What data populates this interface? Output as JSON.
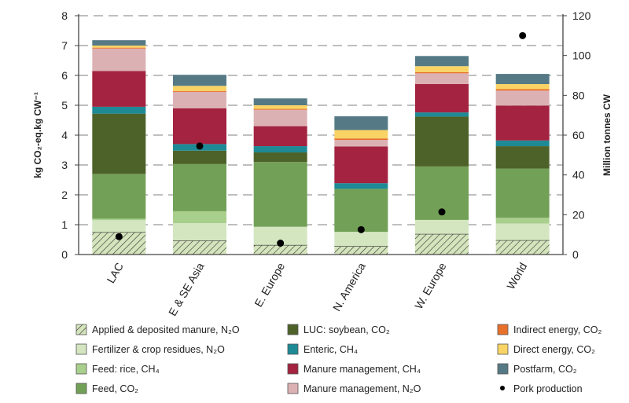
{
  "chart_data": {
    "type": "bar",
    "stacked": true,
    "categories": [
      "LAC",
      "E & SE Asia",
      "E. Europe",
      "N. America",
      "W. Europe",
      "World"
    ],
    "ylabel": "kg CO₂-eq.kg CW⁻¹",
    "ylim": [
      0,
      8
    ],
    "yticks": [
      0,
      1,
      2,
      3,
      4,
      5,
      6,
      7,
      8
    ],
    "y2label": "Million tonnes CW",
    "y2lim": [
      0,
      120
    ],
    "y2ticks": [
      0,
      20,
      40,
      60,
      80,
      100,
      120
    ],
    "grid": "horizontal dashed",
    "legend_position": "bottom",
    "series": [
      {
        "name": "Applied & deposited manure, N₂O",
        "color": "#d4e4bc",
        "hatched": true,
        "values": [
          0.75,
          0.47,
          0.32,
          0.28,
          0.69,
          0.48
        ]
      },
      {
        "name": "Fertilizer & crop residues, N₂O",
        "color": "#d3e6c0",
        "values": [
          0.4,
          0.58,
          0.61,
          0.48,
          0.47,
          0.56
        ]
      },
      {
        "name": "Feed: rice, CH₄",
        "color": "#a9cf8c",
        "values": [
          0.05,
          0.4,
          0.0,
          0.0,
          0.0,
          0.19
        ]
      },
      {
        "name": "Feed, CO₂",
        "color": "#72a057",
        "values": [
          1.5,
          1.58,
          2.17,
          1.44,
          1.79,
          1.65
        ]
      },
      {
        "name": "LUC: soybean, CO₂",
        "color": "#4d6229",
        "values": [
          2.02,
          0.45,
          0.32,
          0.0,
          1.67,
          0.75
        ]
      },
      {
        "name": "Enteric, CH₄",
        "color": "#1d8a96",
        "values": [
          0.23,
          0.22,
          0.21,
          0.19,
          0.14,
          0.19
        ]
      },
      {
        "name": "Manure management, CH₄",
        "color": "#a32340",
        "values": [
          1.2,
          1.2,
          0.67,
          1.23,
          0.95,
          1.17
        ]
      },
      {
        "name": "Manure management, N₂O",
        "color": "#dcb1b4",
        "values": [
          0.75,
          0.55,
          0.55,
          0.22,
          0.36,
          0.5
        ]
      },
      {
        "name": "Indirect energy, CO₂",
        "color": "#e8702a",
        "values": [
          0.03,
          0.03,
          0.03,
          0.05,
          0.04,
          0.05
        ]
      },
      {
        "name": "Direct energy, CO₂",
        "color": "#f9d465",
        "values": [
          0.07,
          0.17,
          0.12,
          0.28,
          0.2,
          0.17
        ]
      },
      {
        "name": "Postfarm, CO₂",
        "color": "#557a85",
        "values": [
          0.18,
          0.37,
          0.23,
          0.46,
          0.34,
          0.34
        ]
      }
    ],
    "secondary_series": {
      "name": "Pork production",
      "type": "scatter",
      "axis": "right",
      "color": "#000000",
      "values": [
        9,
        54.5,
        5.7,
        12.5,
        21.4,
        110
      ]
    }
  }
}
